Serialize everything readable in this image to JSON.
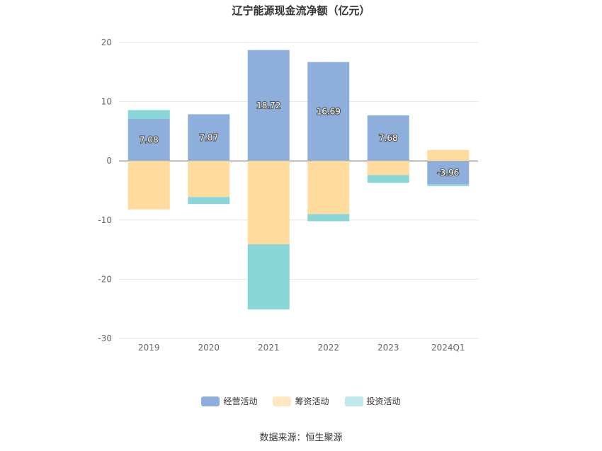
{
  "chart_data": {
    "type": "bar",
    "stacked": true,
    "title": "辽宁能源现金流净额（亿元）",
    "categories": [
      "2019",
      "2020",
      "2021",
      "2022",
      "2023",
      "2024Q1"
    ],
    "ylim": [
      -30,
      20
    ],
    "yticks": [
      "20",
      "10",
      "0",
      "-10",
      "-20",
      "-30"
    ],
    "grid": true,
    "legend_position": "bottom",
    "series": [
      {
        "name": "经营活动",
        "color": "#8eaedc",
        "values": [
          7.08,
          7.87,
          18.72,
          16.69,
          7.68,
          -3.96
        ],
        "labels": [
          "7.08",
          "7.87",
          "18.72",
          "16.69",
          "7.68",
          "-3.96"
        ]
      },
      {
        "name": "筹资活动",
        "color": "#ffdc9e",
        "values": [
          -8.2,
          -6.1,
          -14.1,
          -9.0,
          -2.4,
          1.85
        ]
      },
      {
        "name": "投资活动",
        "color": "#88d6d8",
        "values": [
          1.5,
          -1.2,
          -11.0,
          -1.2,
          -1.3,
          -0.3
        ]
      }
    ]
  },
  "legend_colors": [
    "#8eaedc",
    "#ffe8c0",
    "#bfe8ea"
  ],
  "source": "数据来源：恒生聚源"
}
